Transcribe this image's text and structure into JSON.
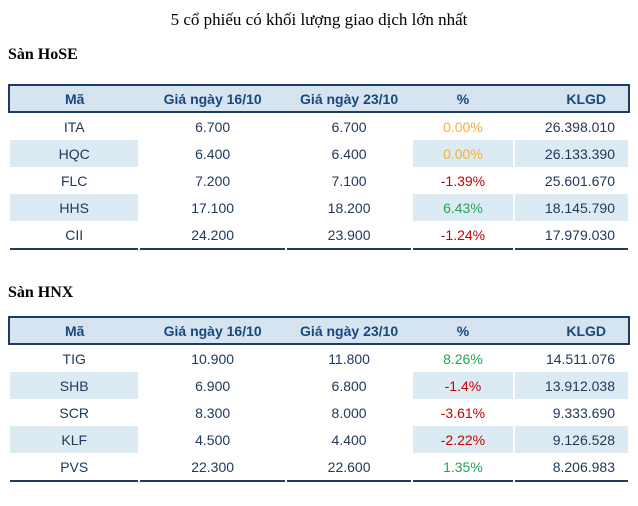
{
  "title": "5 cổ phiếu có khối lượng giao dịch lớn nhất",
  "colors": {
    "table_border": "#1d3c61",
    "header_bg": "#d6e4ef",
    "stripe_bg": "#dcebf3",
    "header_text": "#17497e",
    "body_text": "#20395c",
    "pct_flat": "#fbad33",
    "pct_up": "#23a455",
    "pct_down": "#c90000"
  },
  "sections": [
    {
      "label": "Sàn HoSE",
      "columns": [
        "Mã",
        "Giá ngày 16/10",
        "Giá ngày 23/10",
        "%",
        "KLGD"
      ],
      "rows": [
        {
          "ma": "ITA",
          "gia1": "6.700",
          "gia2": "6.700",
          "pct": "0.00%",
          "trend": "flat",
          "klgd": "26.398.010"
        },
        {
          "ma": "HQC",
          "gia1": "6.400",
          "gia2": "6.400",
          "pct": "0.00%",
          "trend": "flat",
          "klgd": "26.133.390"
        },
        {
          "ma": "FLC",
          "gia1": "7.200",
          "gia2": "7.100",
          "pct": "-1.39%",
          "trend": "down",
          "klgd": "25.601.670"
        },
        {
          "ma": "HHS",
          "gia1": "17.100",
          "gia2": "18.200",
          "pct": "6.43%",
          "trend": "up",
          "klgd": "18.145.790"
        },
        {
          "ma": "CII",
          "gia1": "24.200",
          "gia2": "23.900",
          "pct": "-1.24%",
          "trend": "down",
          "klgd": "17.979.030"
        }
      ]
    },
    {
      "label": "Sàn HNX",
      "columns": [
        "Mã",
        "Giá ngày 16/10",
        "Giá ngày 23/10",
        "%",
        "KLGD"
      ],
      "rows": [
        {
          "ma": "TIG",
          "gia1": "10.900",
          "gia2": "11.800",
          "pct": "8.26%",
          "trend": "up",
          "klgd": "14.511.076"
        },
        {
          "ma": "SHB",
          "gia1": "6.900",
          "gia2": "6.800",
          "pct": "-1.4%",
          "trend": "down",
          "klgd": "13.912.038"
        },
        {
          "ma": "SCR",
          "gia1": "8.300",
          "gia2": "8.000",
          "pct": "-3.61%",
          "trend": "down",
          "klgd": "9.333.690"
        },
        {
          "ma": "KLF",
          "gia1": "4.500",
          "gia2": "4.400",
          "pct": "-2.22%",
          "trend": "down",
          "klgd": "9.126.528"
        },
        {
          "ma": "PVS",
          "gia1": "22.300",
          "gia2": "22.600",
          "pct": "1.35%",
          "trend": "up",
          "klgd": "8.206.983"
        }
      ]
    }
  ]
}
